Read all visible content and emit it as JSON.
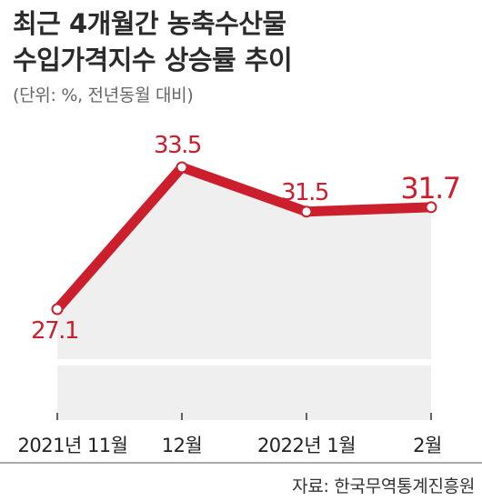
{
  "title_line1": "최근 4개월간 농축수산물",
  "title_line2": "수입가격지수 상승률 추이",
  "unit_note": "(단위: %, 전년동월 대비)",
  "source": "자료: 한국무역통계진흥원",
  "colors": {
    "line": "#cc1f2d",
    "area": "#efefef",
    "title": "#2b2b2b"
  },
  "chart_data": {
    "type": "line",
    "categories": [
      "2021년 11월",
      "12월",
      "2022년 1월",
      "2월"
    ],
    "values": [
      27.1,
      33.5,
      31.5,
      31.7
    ],
    "value_labels": [
      "27.1",
      "33.5",
      "31.5",
      "31.7"
    ],
    "title": "최근 4개월간 농축수산물 수입가격지수 상승률 추이",
    "ylabel": "",
    "xlabel": "",
    "ylim": [
      24,
      34.5
    ],
    "grid": false,
    "axis_break": true
  }
}
